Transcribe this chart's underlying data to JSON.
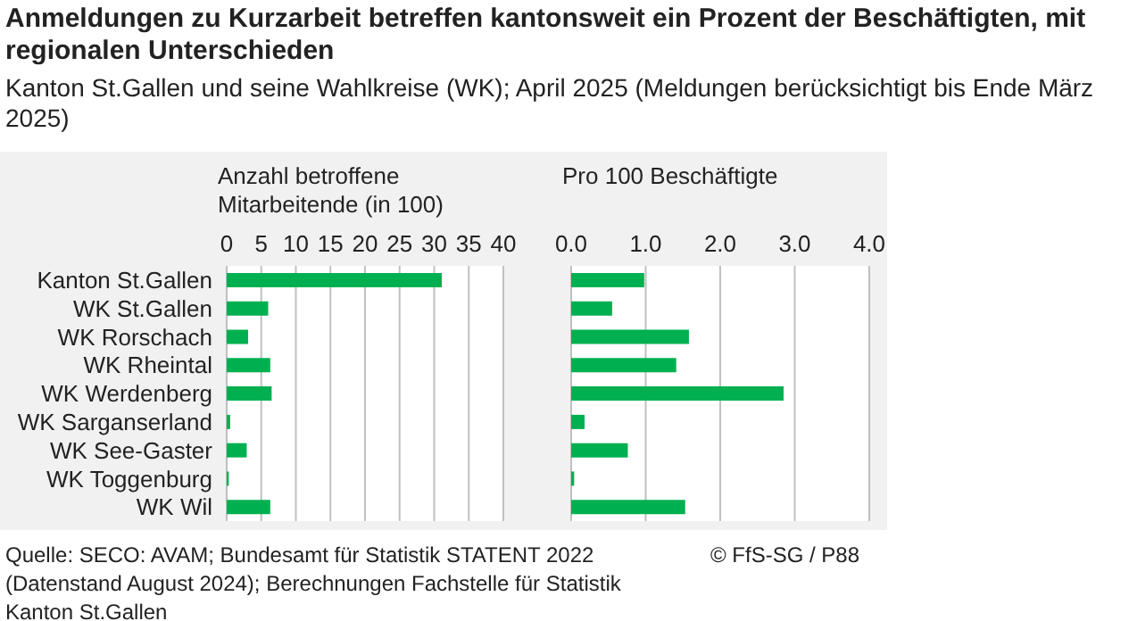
{
  "chart_data": [
    {
      "type": "bar",
      "orientation": "horizontal",
      "title": "Anmeldungen zu Kurzarbeit betreffen kantonsweit ein Prozent der Beschäftigten, mit regionalen Unterschieden",
      "subtitle": "Kanton St.Gallen und seine Wahlkreise (WK); April 2025 (Meldungen berücksichtigt bis Ende März 2025)",
      "xlabel": "Anzahl betroffene Mitarbeitende (in 100)",
      "categories": [
        "Kanton St.Gallen",
        "WK St.Gallen",
        "WK Rorschach",
        "WK Rheintal",
        "WK Werdenberg",
        "WK Sarganserland",
        "WK See-Gaster",
        "WK Toggenburg",
        "WK Wil"
      ],
      "values": [
        31.1,
        6.0,
        3.1,
        6.3,
        6.5,
        0.5,
        2.9,
        0.3,
        6.3
      ],
      "color": "#00b050",
      "xlim": [
        0,
        40
      ],
      "xticks": [
        0,
        5,
        10,
        15,
        20,
        25,
        30,
        35,
        40
      ],
      "grid": "x",
      "annotations": [
        "Quelle: SECO: AVAM; Bundesamt für Statistik STATENT 2022 (Datenstand August 2024); Berechnungen Fachstelle für Statistik Kanton St.Gallen",
        "© FfS-SG / P88"
      ]
    },
    {
      "type": "bar",
      "orientation": "horizontal",
      "xlabel": "Pro 100 Beschäftigte",
      "categories": [
        null,
        null,
        null,
        null,
        null,
        null,
        null,
        null,
        null
      ],
      "values": [
        0.98,
        0.55,
        1.58,
        1.41,
        2.85,
        0.18,
        0.76,
        0.04,
        1.53
      ],
      "color": "#00b050",
      "xlim": [
        0,
        4
      ],
      "xticks": [
        {
          "value": 0,
          "label": "0.0"
        },
        {
          "value": 1,
          "label": "1.0"
        },
        {
          "value": 2,
          "label": "2.0"
        },
        {
          "value": 3,
          "label": "3.0"
        },
        {
          "value": 4,
          "label": "4.0"
        }
      ],
      "grid": "x",
      "tick_labels": "x"
    }
  ]
}
